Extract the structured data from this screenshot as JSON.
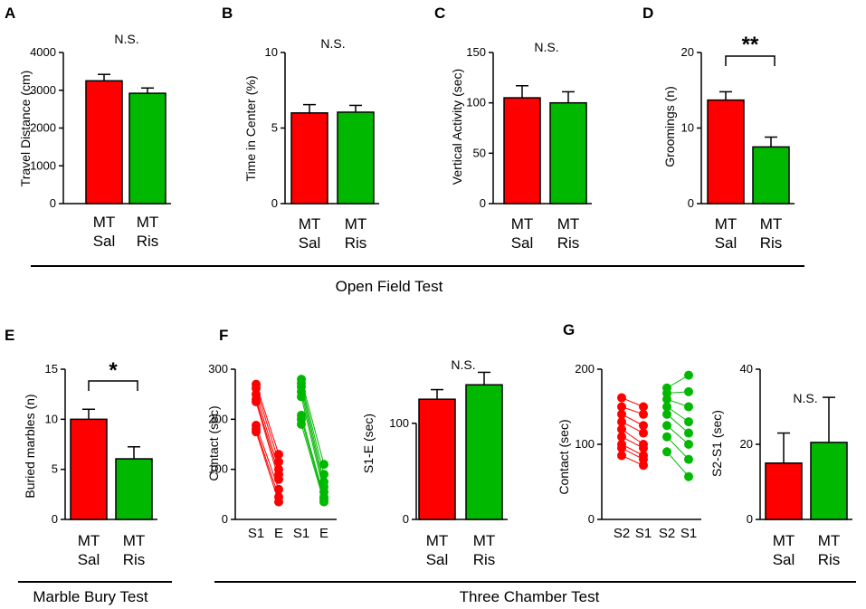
{
  "colors": {
    "sal": "#ff0000",
    "ris": "#00b800",
    "axis": "#000000"
  },
  "panels": {
    "A": {
      "letter": "A",
      "ylabel": "Travel Distance (cm)",
      "ticks": [
        "0",
        "1000",
        "2000",
        "3000",
        "4000"
      ],
      "sig": "N.S.",
      "cat1": [
        "MT",
        "Sal"
      ],
      "cat2": [
        "MT",
        "Ris"
      ]
    },
    "B": {
      "letter": "B",
      "ylabel": "Time in Center (%)",
      "ticks": [
        "0",
        "5",
        "10"
      ],
      "sig": "N.S.",
      "cat1": [
        "MT",
        "Sal"
      ],
      "cat2": [
        "MT",
        "Ris"
      ]
    },
    "C": {
      "letter": "C",
      "ylabel": "Vertical Activity (sec)",
      "ticks": [
        "0",
        "50",
        "100",
        "150"
      ],
      "sig": "N.S.",
      "cat1": [
        "MT",
        "Sal"
      ],
      "cat2": [
        "MT",
        "Ris"
      ]
    },
    "D": {
      "letter": "D",
      "ylabel": "Groomings (n)",
      "ticks": [
        "0",
        "10",
        "20"
      ],
      "sig": "**",
      "cat1": [
        "MT",
        "Sal"
      ],
      "cat2": [
        "MT",
        "Ris"
      ]
    },
    "E": {
      "letter": "E",
      "ylabel": "Buried marbles (n)",
      "ticks": [
        "0",
        "5",
        "10",
        "15"
      ],
      "sig": "*",
      "cat1": [
        "MT",
        "Sal"
      ],
      "cat2": [
        "MT",
        "Ris"
      ]
    },
    "F": {
      "letter": "F",
      "ylabel": "Contact (sec)",
      "ticks": [
        "0",
        "100",
        "200",
        "300"
      ],
      "xcats": [
        "S1",
        "E",
        "S1",
        "E"
      ]
    },
    "F2": {
      "ylabel": "S1-E (sec)",
      "ticks": [
        "0",
        "100"
      ],
      "sig": "N.S.",
      "cat1": [
        "MT",
        "Sal"
      ],
      "cat2": [
        "MT",
        "Ris"
      ]
    },
    "G": {
      "letter": "G",
      "ylabel": "Contact (sec)",
      "ticks": [
        "0",
        "100",
        "200"
      ],
      "xcats": [
        "S2",
        "S1",
        "S2",
        "S1"
      ]
    },
    "G2": {
      "ylabel": "S2-S1 (sec)",
      "ticks": [
        "0",
        "20",
        "40"
      ],
      "sig": "N.S.",
      "cat1": [
        "MT",
        "Sal"
      ],
      "cat2": [
        "MT",
        "Ris"
      ]
    }
  },
  "sections": {
    "open_field": "Open Field Test",
    "marble": "Marble Bury Test",
    "three_chamber": "Three Chamber Test"
  },
  "chart_data": [
    {
      "id": "A",
      "type": "bar",
      "categories": [
        "MT Sal",
        "MT Ris"
      ],
      "values": [
        3250,
        2920
      ],
      "errors": [
        170,
        140
      ],
      "ylim": [
        0,
        4000
      ],
      "ylabel": "Travel Distance (cm)",
      "annotation": "N.S."
    },
    {
      "id": "B",
      "type": "bar",
      "categories": [
        "MT Sal",
        "MT Ris"
      ],
      "values": [
        6.0,
        6.05
      ],
      "errors": [
        0.55,
        0.45
      ],
      "ylim": [
        0,
        10
      ],
      "ylabel": "Time in Center (%)",
      "annotation": "N.S."
    },
    {
      "id": "C",
      "type": "bar",
      "categories": [
        "MT Sal",
        "MT Ris"
      ],
      "values": [
        105,
        100
      ],
      "errors": [
        12,
        11
      ],
      "ylim": [
        0,
        150
      ],
      "ylabel": "Vertical Activity (sec)",
      "annotation": "N.S."
    },
    {
      "id": "D",
      "type": "bar",
      "categories": [
        "MT Sal",
        "MT Ris"
      ],
      "values": [
        13.7,
        7.5
      ],
      "errors": [
        1.1,
        1.3
      ],
      "ylim": [
        0,
        20
      ],
      "ylabel": "Groomings (n)",
      "annotation": "**"
    },
    {
      "id": "E",
      "type": "bar",
      "categories": [
        "MT Sal",
        "MT Ris"
      ],
      "values": [
        10.0,
        6.05
      ],
      "errors": [
        1.0,
        1.2
      ],
      "ylim": [
        0,
        15
      ],
      "ylabel": "Buried marbles (n)",
      "annotation": "*"
    },
    {
      "id": "F",
      "type": "scatter",
      "ylabel": "Contact (sec)",
      "ylim": [
        0,
        300
      ],
      "categories": [
        "S1",
        "E",
        "S1",
        "E"
      ],
      "series": [
        {
          "name": "MT Sal",
          "S1": [
            270,
            262,
            250,
            240,
            235,
            188,
            180,
            175
          ],
          "E": [
            130,
            115,
            100,
            90,
            80,
            60,
            45,
            35
          ]
        },
        {
          "name": "MT Ris",
          "S1": [
            280,
            272,
            265,
            255,
            245,
            208,
            200,
            190
          ],
          "E": [
            110,
            90,
            75,
            65,
            55,
            45,
            40,
            35
          ]
        }
      ]
    },
    {
      "id": "F2",
      "type": "bar",
      "categories": [
        "MT Sal",
        "MT Ris"
      ],
      "values": [
        125,
        140
      ],
      "errors": [
        10,
        13
      ],
      "ylim": [
        0,
        160
      ],
      "ylabel": "S1-E (sec)",
      "annotation": "N.S."
    },
    {
      "id": "G",
      "type": "scatter",
      "ylabel": "Contact (sec)",
      "ylim": [
        0,
        200
      ],
      "categories": [
        "S2",
        "S1",
        "S2",
        "S1"
      ],
      "series": [
        {
          "name": "MT Sal",
          "S2": [
            162,
            150,
            140,
            130,
            120,
            110,
            100,
            95,
            85
          ],
          "S1": [
            150,
            140,
            125,
            115,
            100,
            95,
            85,
            80,
            72
          ]
        },
        {
          "name": "MT Ris",
          "S2": [
            175,
            168,
            160,
            150,
            140,
            125,
            110,
            90
          ],
          "S1": [
            192,
            170,
            150,
            130,
            115,
            100,
            80,
            57
          ]
        }
      ]
    },
    {
      "id": "G2",
      "type": "bar",
      "categories": [
        "MT Sal",
        "MT Ris"
      ],
      "values": [
        15,
        20.5
      ],
      "errors": [
        8,
        12
      ],
      "ylim": [
        0,
        40
      ],
      "ylabel": "S2-S1 (sec)",
      "annotation": "N.S."
    }
  ]
}
